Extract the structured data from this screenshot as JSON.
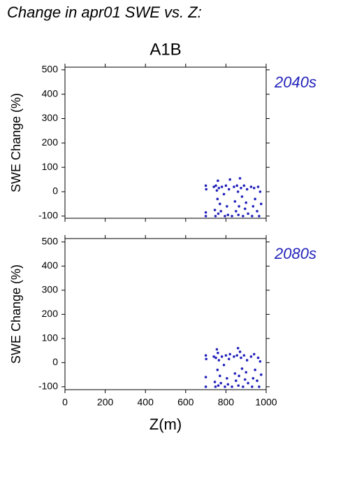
{
  "chart_data": [
    {
      "type": "scatter",
      "title": "Change in apr01 SWE vs. Z:",
      "subtitle": "A1B",
      "ylabel": "SWE Change (%)",
      "annotation": "2040s",
      "color": "#2222bb",
      "xlim": [
        0,
        1000
      ],
      "ylim": [
        -109,
        511
      ],
      "xticks": [
        0,
        200,
        400,
        600,
        800,
        1000
      ],
      "yticks": [
        -100,
        0,
        100,
        200,
        300,
        400,
        500
      ],
      "show_xtick_labels": false,
      "x": [
        700,
        700,
        700,
        702,
        740,
        745,
        748,
        750,
        755,
        758,
        760,
        762,
        765,
        770,
        775,
        780,
        790,
        795,
        800,
        805,
        810,
        815,
        820,
        830,
        840,
        845,
        850,
        855,
        860,
        862,
        865,
        870,
        875,
        880,
        885,
        890,
        895,
        900,
        905,
        910,
        925,
        930,
        935,
        940,
        945,
        955,
        960,
        965,
        970,
        975
      ],
      "y": [
        25,
        -85,
        -100,
        10,
        20,
        -75,
        -100,
        25,
        5,
        -30,
        45,
        -90,
        15,
        -50,
        -80,
        20,
        -10,
        -100,
        25,
        -60,
        -95,
        10,
        50,
        -100,
        20,
        -40,
        -80,
        25,
        0,
        -95,
        -60,
        55,
        15,
        -20,
        -100,
        25,
        -70,
        -45,
        10,
        -90,
        20,
        -100,
        -60,
        15,
        -30,
        -80,
        20,
        -100,
        0,
        -50
      ]
    },
    {
      "type": "scatter",
      "ylabel": "SWE Change (%)",
      "xlabel": "Z(m)",
      "annotation": "2080s",
      "color": "#2222bb",
      "xlim": [
        0,
        1000
      ],
      "ylim": [
        -112,
        514
      ],
      "xticks": [
        0,
        200,
        400,
        600,
        800,
        1000
      ],
      "yticks": [
        -100,
        0,
        100,
        200,
        300,
        400,
        500
      ],
      "show_xtick_labels": true,
      "x": [
        700,
        700,
        700,
        702,
        740,
        745,
        748,
        750,
        755,
        758,
        760,
        762,
        765,
        770,
        775,
        780,
        790,
        795,
        800,
        805,
        810,
        815,
        820,
        830,
        840,
        845,
        850,
        855,
        860,
        862,
        865,
        870,
        875,
        880,
        885,
        890,
        895,
        900,
        905,
        910,
        925,
        930,
        935,
        940,
        945,
        955,
        960,
        965,
        970,
        975
      ],
      "y": [
        30,
        -60,
        -100,
        15,
        25,
        -80,
        -100,
        20,
        55,
        -30,
        40,
        -95,
        10,
        -55,
        -85,
        25,
        -10,
        -100,
        30,
        -65,
        -90,
        15,
        35,
        -100,
        25,
        -45,
        -75,
        30,
        60,
        -95,
        -55,
        45,
        20,
        -25,
        -100,
        30,
        -70,
        -40,
        10,
        -85,
        25,
        -100,
        -65,
        35,
        -30,
        -75,
        20,
        -100,
        5,
        -50
      ]
    }
  ]
}
